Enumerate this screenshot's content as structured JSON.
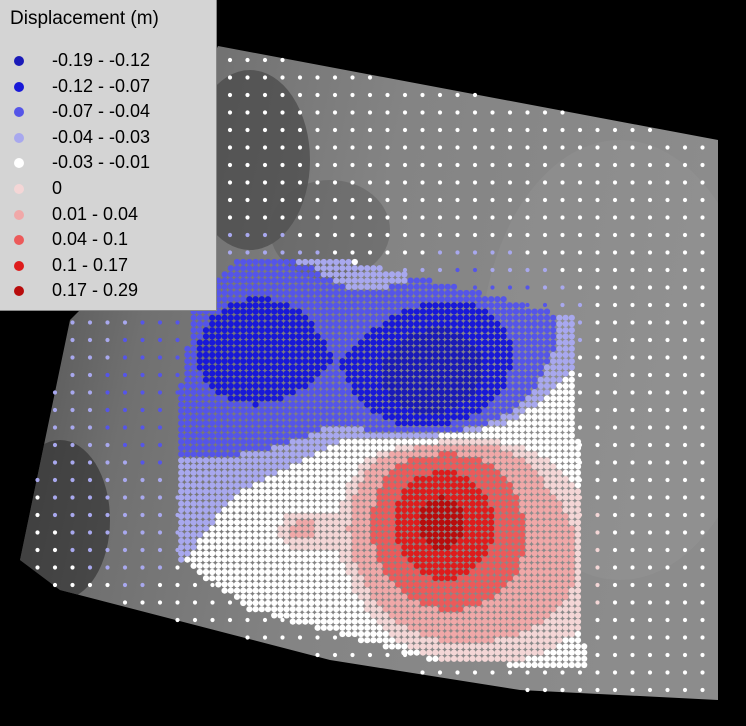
{
  "map": {
    "legend_title": "Displacement (m)",
    "classes": [
      {
        "label": "-0.19 - -0.12",
        "color": "#1a1ab8"
      },
      {
        "label": "-0.12 - -0.07",
        "color": "#1818d8"
      },
      {
        "label": "-0.07 - -0.04",
        "color": "#5555e8"
      },
      {
        "label": "-0.04 - -0.03",
        "color": "#a8a8ee"
      },
      {
        "label": "-0.03 - -0.01",
        "color": "#ffffff"
      },
      {
        "label": "0",
        "color": "#f4d6d6"
      },
      {
        "label": "0.01 - 0.04",
        "color": "#f0a8a8"
      },
      {
        "label": "0.04 - 0.1",
        "color": "#ec5a5a"
      },
      {
        "label": "0.1 - 0.17",
        "color": "#de1c1c"
      },
      {
        "label": "0.17 - 0.29",
        "color": "#b80c0c"
      }
    ],
    "basemap": "grayscale-elevation-raster"
  }
}
